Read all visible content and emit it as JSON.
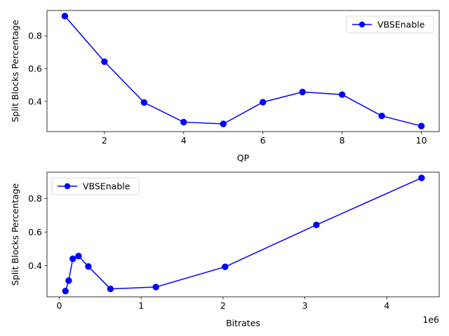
{
  "chart_data": [
    {
      "type": "line",
      "xlabel": "QP",
      "ylabel": "Split Blocks Percentage",
      "xlim": [
        0.55,
        10.45
      ],
      "ylim": [
        0.215,
        0.955
      ],
      "xticks": [
        2,
        4,
        6,
        8,
        10
      ],
      "xtick_labels": [
        "2",
        "4",
        "6",
        "8",
        "10"
      ],
      "yticks": [
        0.4,
        0.6,
        0.8
      ],
      "ytick_labels": [
        "0.4",
        "0.6",
        "0.8"
      ],
      "legend": "top-right",
      "grid": false,
      "series": [
        {
          "name": "VBSEnable",
          "color": "#0000ff",
          "marker": "circle",
          "x": [
            1,
            2,
            3,
            4,
            5,
            6,
            7,
            8,
            9,
            10
          ],
          "y": [
            0.921,
            0.642,
            0.393,
            0.273,
            0.262,
            0.395,
            0.457,
            0.441,
            0.311,
            0.249
          ]
        }
      ]
    },
    {
      "type": "line",
      "xlabel": "Bitrates",
      "ylabel": "Split Blocks Percentage",
      "xlim": [
        -150000,
        4640000
      ],
      "ylim": [
        0.215,
        0.955
      ],
      "xticks": [
        0,
        1000000,
        2000000,
        3000000,
        4000000
      ],
      "xtick_labels": [
        "0",
        "1",
        "2",
        "3",
        "4"
      ],
      "x_offset_label": "1e6",
      "yticks": [
        0.4,
        0.6,
        0.8
      ],
      "ytick_labels": [
        "0.4",
        "0.6",
        "0.8"
      ],
      "legend": "top-left",
      "grid": false,
      "series": [
        {
          "name": "VBSEnable",
          "color": "#0000ff",
          "marker": "circle",
          "x": [
            75000,
            115000,
            165000,
            235000,
            355000,
            625000,
            1180000,
            2025000,
            3140000,
            4425000
          ],
          "y": [
            0.249,
            0.311,
            0.441,
            0.457,
            0.395,
            0.262,
            0.273,
            0.393,
            0.642,
            0.921
          ]
        }
      ]
    }
  ]
}
